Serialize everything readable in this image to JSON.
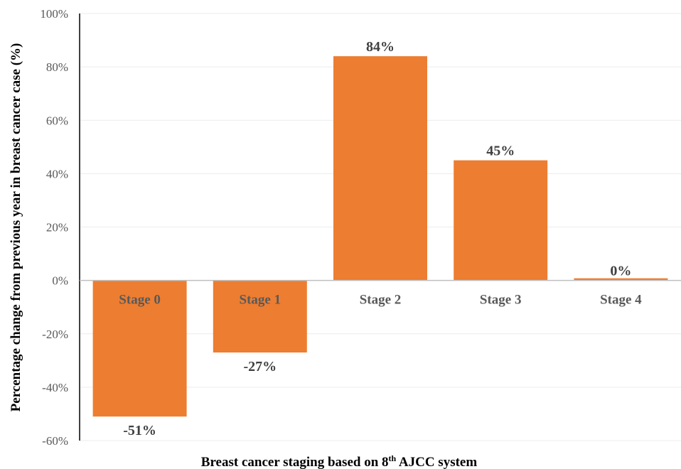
{
  "chart_data": {
    "type": "bar",
    "categories": [
      "Stage 0",
      "Stage 1",
      "Stage 2",
      "Stage 3",
      "Stage 4"
    ],
    "values": [
      -51,
      -27,
      84,
      45,
      0
    ],
    "data_labels": [
      "-51%",
      "-27%",
      "84%",
      "45%",
      "0%"
    ],
    "ylim": [
      -60,
      100
    ],
    "yticks": [
      -60,
      -40,
      -20,
      0,
      20,
      40,
      60,
      80,
      100
    ],
    "ytick_labels": [
      "-60%",
      "-40%",
      "-20%",
      "0%",
      "20%",
      "40%",
      "60%",
      "80%",
      "100%"
    ],
    "ylabel": "Percentage change from previous year in breast cancer case  (%)",
    "xlabel_prefix": "Breast cancer staging based on 8",
    "xlabel_sup": "th",
    "xlabel_suffix": " AJCC system",
    "grid": true,
    "bar_color": "#ED7D31"
  }
}
